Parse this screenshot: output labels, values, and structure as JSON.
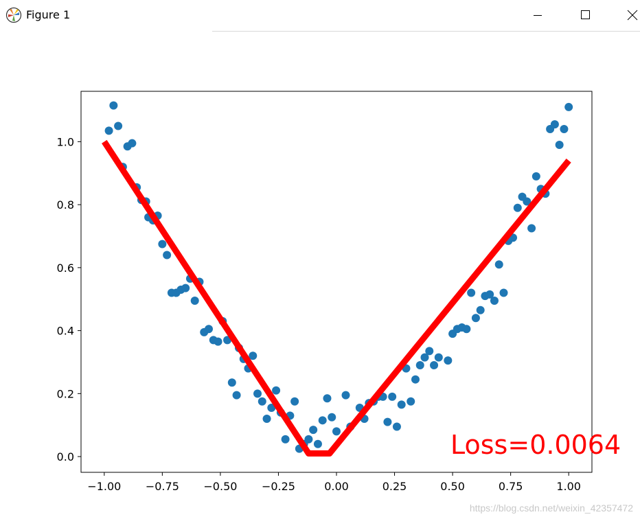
{
  "window": {
    "title": "Figure 1",
    "icons": {
      "app": "matplotlib-icon",
      "minimize": "minimize-icon",
      "maximize": "maximize-icon",
      "close": "close-icon"
    }
  },
  "chart_data": {
    "type": "scatter",
    "title": "",
    "xlabel": "",
    "ylabel": "",
    "xlim": [
      -1.1,
      1.1
    ],
    "ylim": [
      -0.05,
      1.16
    ],
    "grid": false,
    "x_ticks": [
      "−1.00",
      "−0.75",
      "−0.50",
      "−0.25",
      "0.00",
      "0.25",
      "0.50",
      "0.75",
      "1.00"
    ],
    "x_tick_values": [
      -1.0,
      -0.75,
      -0.5,
      -0.25,
      0.0,
      0.25,
      0.5,
      0.75,
      1.0
    ],
    "y_ticks": [
      "0.0",
      "0.2",
      "0.4",
      "0.6",
      "0.8",
      "1.0"
    ],
    "y_tick_values": [
      0.0,
      0.2,
      0.4,
      0.6,
      0.8,
      1.0
    ],
    "series": [
      {
        "type": "scatter",
        "color": "#1f77b4",
        "points": [
          [
            -0.98,
            1.035
          ],
          [
            -0.96,
            1.115
          ],
          [
            -0.94,
            1.05
          ],
          [
            -0.92,
            0.92
          ],
          [
            -0.9,
            0.985
          ],
          [
            -0.88,
            0.995
          ],
          [
            -0.86,
            0.855
          ],
          [
            -0.84,
            0.815
          ],
          [
            -0.82,
            0.81
          ],
          [
            -0.81,
            0.76
          ],
          [
            -0.79,
            0.75
          ],
          [
            -0.77,
            0.765
          ],
          [
            -0.75,
            0.675
          ],
          [
            -0.73,
            0.64
          ],
          [
            -0.71,
            0.52
          ],
          [
            -0.69,
            0.52
          ],
          [
            -0.67,
            0.53
          ],
          [
            -0.65,
            0.535
          ],
          [
            -0.63,
            0.565
          ],
          [
            -0.61,
            0.495
          ],
          [
            -0.59,
            0.555
          ],
          [
            -0.57,
            0.395
          ],
          [
            -0.55,
            0.405
          ],
          [
            -0.53,
            0.37
          ],
          [
            -0.51,
            0.365
          ],
          [
            -0.49,
            0.43
          ],
          [
            -0.47,
            0.37
          ],
          [
            -0.45,
            0.235
          ],
          [
            -0.43,
            0.195
          ],
          [
            -0.42,
            0.345
          ],
          [
            -0.4,
            0.31
          ],
          [
            -0.38,
            0.28
          ],
          [
            -0.36,
            0.32
          ],
          [
            -0.34,
            0.2
          ],
          [
            -0.32,
            0.175
          ],
          [
            -0.3,
            0.12
          ],
          [
            -0.28,
            0.155
          ],
          [
            -0.26,
            0.21
          ],
          [
            -0.24,
            0.14
          ],
          [
            -0.22,
            0.055
          ],
          [
            -0.2,
            0.13
          ],
          [
            -0.18,
            0.175
          ],
          [
            -0.16,
            0.025
          ],
          [
            -0.14,
            0.04
          ],
          [
            -0.12,
            0.055
          ],
          [
            -0.1,
            0.085
          ],
          [
            -0.08,
            0.04
          ],
          [
            -0.06,
            0.115
          ],
          [
            -0.04,
            0.185
          ],
          [
            -0.02,
            0.125
          ],
          [
            0.0,
            0.08
          ],
          [
            0.04,
            0.195
          ],
          [
            0.06,
            0.095
          ],
          [
            0.1,
            0.155
          ],
          [
            0.12,
            0.12
          ],
          [
            0.14,
            0.17
          ],
          [
            0.16,
            0.175
          ],
          [
            0.18,
            0.19
          ],
          [
            0.2,
            0.19
          ],
          [
            0.22,
            0.11
          ],
          [
            0.24,
            0.19
          ],
          [
            0.26,
            0.095
          ],
          [
            0.28,
            0.165
          ],
          [
            0.3,
            0.28
          ],
          [
            0.32,
            0.175
          ],
          [
            0.34,
            0.245
          ],
          [
            0.36,
            0.29
          ],
          [
            0.38,
            0.315
          ],
          [
            0.4,
            0.335
          ],
          [
            0.42,
            0.29
          ],
          [
            0.44,
            0.315
          ],
          [
            0.48,
            0.305
          ],
          [
            0.5,
            0.39
          ],
          [
            0.52,
            0.405
          ],
          [
            0.54,
            0.41
          ],
          [
            0.56,
            0.405
          ],
          [
            0.58,
            0.52
          ],
          [
            0.6,
            0.44
          ],
          [
            0.62,
            0.465
          ],
          [
            0.64,
            0.51
          ],
          [
            0.66,
            0.515
          ],
          [
            0.68,
            0.495
          ],
          [
            0.7,
            0.61
          ],
          [
            0.72,
            0.52
          ],
          [
            0.74,
            0.685
          ],
          [
            0.76,
            0.695
          ],
          [
            0.78,
            0.79
          ],
          [
            0.8,
            0.825
          ],
          [
            0.82,
            0.81
          ],
          [
            0.84,
            0.725
          ],
          [
            0.86,
            0.89
          ],
          [
            0.88,
            0.85
          ],
          [
            0.9,
            0.835
          ],
          [
            0.92,
            1.04
          ],
          [
            0.94,
            1.055
          ],
          [
            0.96,
            0.99
          ],
          [
            0.98,
            1.04
          ],
          [
            1.0,
            1.11
          ]
        ]
      },
      {
        "type": "line",
        "color": "#ff0000",
        "points": [
          [
            -1.0,
            1.0
          ],
          [
            -0.12,
            0.01
          ],
          [
            -0.03,
            0.01
          ],
          [
            1.0,
            0.94
          ]
        ]
      }
    ],
    "annotation": {
      "text": "Loss=0.0064",
      "color": "#ff0000"
    }
  },
  "watermark": "https://blog.csdn.net/weixin_42357472"
}
